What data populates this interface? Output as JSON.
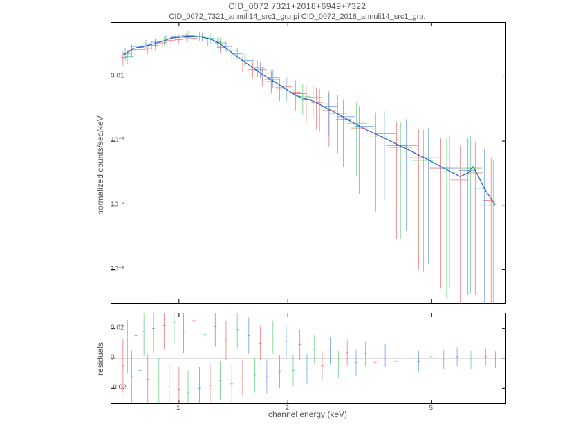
{
  "title": "CID_0072 7321+2018+6949+7322",
  "subtitle": "CID_0072_7321_annuli14_src1_grp.pi CID_0072_2018_annuli14_src1_grp.",
  "xlabel": "channel energy (keV)",
  "ylabel_top": "normalized counts/sec/keV",
  "ylabel_bot": "residuals",
  "xscale": "log",
  "yscale_top": "log",
  "yscale_bot": "linear",
  "xlim": [
    0.65,
    8.0
  ],
  "ylim_top": [
    3e-06,
    0.07
  ],
  "ylim_bot": [
    -0.03,
    0.03
  ],
  "xticks": [
    1,
    2,
    5
  ],
  "yticks_top": [
    1e-05,
    0.0001,
    0.001,
    0.01
  ],
  "yticks_top_labels": [
    "10⁻⁵",
    "10⁻⁴",
    "10⁻³",
    "0.01"
  ],
  "yticks_bot": [
    -0.02,
    0,
    0.02
  ],
  "colors": {
    "s1": "#e85050",
    "s2": "#4080e0",
    "s3": "#40c060",
    "s4": "#9060e0",
    "model": "#2060c0",
    "axis": "#000000",
    "text": "#555555"
  },
  "line_width": 0.8,
  "model_width": 1.2,
  "model_x": [
    0.7,
    0.75,
    0.8,
    0.85,
    0.9,
    0.95,
    1.0,
    1.05,
    1.1,
    1.15,
    1.2,
    1.25,
    1.3,
    1.35,
    1.4,
    1.5,
    1.6,
    1.7,
    1.8,
    1.9,
    2.0,
    2.1,
    2.2,
    2.3,
    2.4,
    2.5,
    2.7,
    3.0,
    3.3,
    3.6,
    4.0,
    4.5,
    5.0,
    5.5,
    6.0,
    6.3,
    6.5,
    6.7,
    7.0,
    7.5
  ],
  "model_y": [
    0.022,
    0.028,
    0.03,
    0.033,
    0.036,
    0.04,
    0.042,
    0.043,
    0.043,
    0.042,
    0.04,
    0.037,
    0.033,
    0.028,
    0.024,
    0.018,
    0.014,
    0.011,
    0.009,
    0.0075,
    0.0062,
    0.0052,
    0.0047,
    0.0044,
    0.004,
    0.0035,
    0.0028,
    0.002,
    0.0015,
    0.0012,
    0.0009,
    0.00065,
    0.00048,
    0.00036,
    0.00028,
    0.00032,
    0.0004,
    0.0003,
    0.00018,
    0.0001
  ],
  "series1": {
    "color": "#e85050",
    "points": [
      {
        "x": 0.7,
        "y": 0.02,
        "yl": 0.015,
        "yh": 0.025
      },
      {
        "x": 0.74,
        "y": 0.026,
        "yl": 0.02,
        "yh": 0.032
      },
      {
        "x": 0.78,
        "y": 0.029,
        "yl": 0.024,
        "yh": 0.034
      },
      {
        "x": 0.82,
        "y": 0.028,
        "yl": 0.023,
        "yh": 0.033
      },
      {
        "x": 0.86,
        "y": 0.031,
        "yl": 0.026,
        "yh": 0.036
      },
      {
        "x": 0.9,
        "y": 0.034,
        "yl": 0.029,
        "yh": 0.039
      },
      {
        "x": 0.95,
        "y": 0.037,
        "yl": 0.032,
        "yh": 0.043
      },
      {
        "x": 1.0,
        "y": 0.038,
        "yl": 0.033,
        "yh": 0.045
      },
      {
        "x": 1.05,
        "y": 0.041,
        "yl": 0.035,
        "yh": 0.048
      },
      {
        "x": 1.1,
        "y": 0.04,
        "yl": 0.034,
        "yh": 0.047
      },
      {
        "x": 1.15,
        "y": 0.039,
        "yl": 0.033,
        "yh": 0.046
      },
      {
        "x": 1.2,
        "y": 0.036,
        "yl": 0.03,
        "yh": 0.043
      },
      {
        "x": 1.25,
        "y": 0.033,
        "yl": 0.027,
        "yh": 0.039
      },
      {
        "x": 1.3,
        "y": 0.029,
        "yl": 0.024,
        "yh": 0.035
      },
      {
        "x": 1.4,
        "y": 0.022,
        "yl": 0.017,
        "yh": 0.027
      },
      {
        "x": 1.5,
        "y": 0.016,
        "yl": 0.012,
        "yh": 0.021
      },
      {
        "x": 1.6,
        "y": 0.013,
        "yl": 0.0095,
        "yh": 0.017
      },
      {
        "x": 1.7,
        "y": 0.01,
        "yl": 0.007,
        "yh": 0.014
      },
      {
        "x": 1.8,
        "y": 0.0085,
        "yl": 0.0055,
        "yh": 0.012
      },
      {
        "x": 1.9,
        "y": 0.0068,
        "yl": 0.0042,
        "yh": 0.0095
      },
      {
        "x": 2.0,
        "y": 0.007,
        "yl": 0.004,
        "yh": 0.0102
      },
      {
        "x": 2.1,
        "y": 0.0058,
        "yl": 0.003,
        "yh": 0.0088
      },
      {
        "x": 2.25,
        "y": 0.0045,
        "yl": 0.002,
        "yh": 0.0072
      },
      {
        "x": 2.4,
        "y": 0.004,
        "yl": 0.0015,
        "yh": 0.0068
      },
      {
        "x": 2.6,
        "y": 0.003,
        "yl": 0.0008,
        "yh": 0.0055
      },
      {
        "x": 2.85,
        "y": 0.0022,
        "yl": 0.0004,
        "yh": 0.0045
      },
      {
        "x": 3.15,
        "y": 0.0016,
        "yl": 0.00015,
        "yh": 0.0035
      },
      {
        "x": 3.5,
        "y": 0.0012,
        "yl": 8e-05,
        "yh": 0.0028
      },
      {
        "x": 4.0,
        "y": 0.00085,
        "yl": 3e-05,
        "yh": 0.002
      },
      {
        "x": 4.6,
        "y": 0.00055,
        "yl": 1e-05,
        "yh": 0.0015
      },
      {
        "x": 5.3,
        "y": 0.00038,
        "yl": 5e-06,
        "yh": 0.0011
      },
      {
        "x": 6.0,
        "y": 0.00025,
        "yl": 3e-06,
        "yh": 0.00085
      },
      {
        "x": 6.6,
        "y": 0.00032,
        "yl": 4e-06,
        "yh": 0.00095
      },
      {
        "x": 7.3,
        "y": 0.00012,
        "yl": 1.5e-06,
        "yh": 0.00055
      }
    ]
  },
  "series2": {
    "color": "#4080e0",
    "points": [
      {
        "x": 0.71,
        "y": 0.023,
        "yl": 0.018,
        "yh": 0.028
      },
      {
        "x": 0.76,
        "y": 0.03,
        "yl": 0.025,
        "yh": 0.035
      },
      {
        "x": 0.81,
        "y": 0.033,
        "yl": 0.028,
        "yh": 0.038
      },
      {
        "x": 0.86,
        "y": 0.035,
        "yl": 0.03,
        "yh": 0.04
      },
      {
        "x": 0.92,
        "y": 0.039,
        "yl": 0.034,
        "yh": 0.045
      },
      {
        "x": 0.98,
        "y": 0.043,
        "yl": 0.037,
        "yh": 0.05
      },
      {
        "x": 1.04,
        "y": 0.045,
        "yl": 0.039,
        "yh": 0.052
      },
      {
        "x": 1.1,
        "y": 0.045,
        "yl": 0.038,
        "yh": 0.053
      },
      {
        "x": 1.16,
        "y": 0.042,
        "yl": 0.036,
        "yh": 0.049
      },
      {
        "x": 1.22,
        "y": 0.039,
        "yl": 0.033,
        "yh": 0.046
      },
      {
        "x": 1.28,
        "y": 0.035,
        "yl": 0.029,
        "yh": 0.042
      },
      {
        "x": 1.35,
        "y": 0.03,
        "yl": 0.025,
        "yh": 0.036
      },
      {
        "x": 1.45,
        "y": 0.023,
        "yl": 0.019,
        "yh": 0.028
      },
      {
        "x": 1.55,
        "y": 0.018,
        "yl": 0.014,
        "yh": 0.023
      },
      {
        "x": 1.68,
        "y": 0.013,
        "yl": 0.0095,
        "yh": 0.017
      },
      {
        "x": 1.82,
        "y": 0.0098,
        "yl": 0.0068,
        "yh": 0.013
      },
      {
        "x": 1.98,
        "y": 0.0072,
        "yl": 0.0045,
        "yh": 0.01
      },
      {
        "x": 2.15,
        "y": 0.0055,
        "yl": 0.003,
        "yh": 0.0082
      },
      {
        "x": 2.35,
        "y": 0.0048,
        "yl": 0.0023,
        "yh": 0.0075
      },
      {
        "x": 2.6,
        "y": 0.0035,
        "yl": 0.0012,
        "yh": 0.006
      },
      {
        "x": 2.9,
        "y": 0.0024,
        "yl": 0.00055,
        "yh": 0.0048
      },
      {
        "x": 3.25,
        "y": 0.0017,
        "yl": 0.00025,
        "yh": 0.0038
      },
      {
        "x": 3.7,
        "y": 0.0013,
        "yl": 0.00012,
        "yh": 0.003
      },
      {
        "x": 4.25,
        "y": 0.00085,
        "yl": 4e-05,
        "yh": 0.0022
      },
      {
        "x": 4.9,
        "y": 0.00055,
        "yl": 1.2e-05,
        "yh": 0.0016
      },
      {
        "x": 5.6,
        "y": 0.00038,
        "yl": 5e-06,
        "yh": 0.0012
      },
      {
        "x": 6.3,
        "y": 0.00035,
        "yl": 4e-06,
        "yh": 0.0011
      },
      {
        "x": 7.0,
        "y": 0.00018,
        "yl": 1.8e-06,
        "yh": 0.00075
      }
    ]
  },
  "series3": {
    "color": "#40c060",
    "points": [
      {
        "x": 0.72,
        "y": 0.021,
        "yl": 0.016,
        "yh": 0.026
      },
      {
        "x": 0.78,
        "y": 0.027,
        "yl": 0.022,
        "yh": 0.032
      },
      {
        "x": 0.84,
        "y": 0.031,
        "yl": 0.026,
        "yh": 0.036
      },
      {
        "x": 0.91,
        "y": 0.036,
        "yl": 0.031,
        "yh": 0.042
      },
      {
        "x": 0.98,
        "y": 0.041,
        "yl": 0.035,
        "yh": 0.048
      },
      {
        "x": 1.06,
        "y": 0.044,
        "yl": 0.037,
        "yh": 0.052
      },
      {
        "x": 1.14,
        "y": 0.043,
        "yl": 0.036,
        "yh": 0.051
      },
      {
        "x": 1.22,
        "y": 0.04,
        "yl": 0.034,
        "yh": 0.048
      },
      {
        "x": 1.3,
        "y": 0.034,
        "yl": 0.028,
        "yh": 0.041
      },
      {
        "x": 1.4,
        "y": 0.026,
        "yl": 0.021,
        "yh": 0.032
      },
      {
        "x": 1.52,
        "y": 0.019,
        "yl": 0.015,
        "yh": 0.024
      },
      {
        "x": 1.65,
        "y": 0.014,
        "yl": 0.01,
        "yh": 0.018
      },
      {
        "x": 1.8,
        "y": 0.0092,
        "yl": 0.0063,
        "yh": 0.013
      },
      {
        "x": 1.98,
        "y": 0.0065,
        "yl": 0.004,
        "yh": 0.0095
      },
      {
        "x": 2.2,
        "y": 0.005,
        "yl": 0.0025,
        "yh": 0.0078
      },
      {
        "x": 2.45,
        "y": 0.0038,
        "yl": 0.0014,
        "yh": 0.0065
      },
      {
        "x": 2.75,
        "y": 0.0027,
        "yl": 0.00065,
        "yh": 0.0052
      },
      {
        "x": 3.1,
        "y": 0.0019,
        "yl": 0.00028,
        "yh": 0.004
      },
      {
        "x": 3.55,
        "y": 0.0012,
        "yl": 0.0001,
        "yh": 0.0028
      },
      {
        "x": 4.1,
        "y": 0.0008,
        "yl": 3e-05,
        "yh": 0.002
      },
      {
        "x": 4.75,
        "y": 0.0005,
        "yl": 9e-06,
        "yh": 0.0015
      },
      {
        "x": 5.5,
        "y": 0.00033,
        "yl": 3.5e-06,
        "yh": 0.0011
      },
      {
        "x": 6.4,
        "y": 0.00038,
        "yl": 4.2e-06,
        "yh": 0.0012
      },
      {
        "x": 7.4,
        "y": 0.0001,
        "yl": 1e-06,
        "yh": 0.0005
      }
    ]
  },
  "residuals": {
    "points": [
      {
        "x": 0.7,
        "r": -0.005,
        "c": "s1"
      },
      {
        "x": 0.72,
        "r": 0.008,
        "c": "s2"
      },
      {
        "x": 0.74,
        "r": -0.012,
        "c": "s3"
      },
      {
        "x": 0.76,
        "r": 0.015,
        "c": "s1"
      },
      {
        "x": 0.78,
        "r": -0.008,
        "c": "s2"
      },
      {
        "x": 0.8,
        "r": 0.018,
        "c": "s3"
      },
      {
        "x": 0.82,
        "r": -0.014,
        "c": "s1"
      },
      {
        "x": 0.85,
        "r": 0.02,
        "c": "s2"
      },
      {
        "x": 0.88,
        "r": -0.016,
        "c": "s3"
      },
      {
        "x": 0.91,
        "r": 0.022,
        "c": "s1"
      },
      {
        "x": 0.94,
        "r": -0.019,
        "c": "s2"
      },
      {
        "x": 0.97,
        "r": 0.024,
        "c": "s3"
      },
      {
        "x": 1.0,
        "r": -0.021,
        "c": "s1"
      },
      {
        "x": 1.03,
        "r": 0.018,
        "c": "s2"
      },
      {
        "x": 1.06,
        "r": -0.023,
        "c": "s3"
      },
      {
        "x": 1.1,
        "r": 0.025,
        "c": "s1"
      },
      {
        "x": 1.14,
        "r": -0.02,
        "c": "s2"
      },
      {
        "x": 1.18,
        "r": 0.016,
        "c": "s3"
      },
      {
        "x": 1.22,
        "r": -0.018,
        "c": "s1"
      },
      {
        "x": 1.26,
        "r": 0.021,
        "c": "s2"
      },
      {
        "x": 1.3,
        "r": -0.015,
        "c": "s3"
      },
      {
        "x": 1.35,
        "r": 0.012,
        "c": "s1"
      },
      {
        "x": 1.4,
        "r": -0.017,
        "c": "s2"
      },
      {
        "x": 1.45,
        "r": 0.019,
        "c": "s3"
      },
      {
        "x": 1.5,
        "r": -0.013,
        "c": "s1"
      },
      {
        "x": 1.56,
        "r": 0.015,
        "c": "s2"
      },
      {
        "x": 1.62,
        "r": -0.011,
        "c": "s3"
      },
      {
        "x": 1.68,
        "r": 0.01,
        "c": "s1"
      },
      {
        "x": 1.75,
        "r": -0.012,
        "c": "s2"
      },
      {
        "x": 1.82,
        "r": 0.014,
        "c": "s3"
      },
      {
        "x": 1.9,
        "r": -0.009,
        "c": "s1"
      },
      {
        "x": 1.98,
        "r": 0.011,
        "c": "s2"
      },
      {
        "x": 2.07,
        "r": -0.008,
        "c": "s3"
      },
      {
        "x": 2.16,
        "r": 0.009,
        "c": "s1"
      },
      {
        "x": 2.26,
        "r": -0.007,
        "c": "s2"
      },
      {
        "x": 2.37,
        "r": 0.006,
        "c": "s3"
      },
      {
        "x": 2.49,
        "r": -0.005,
        "c": "s1"
      },
      {
        "x": 2.62,
        "r": 0.005,
        "c": "s2"
      },
      {
        "x": 2.76,
        "r": -0.004,
        "c": "s3"
      },
      {
        "x": 2.92,
        "r": 0.004,
        "c": "s1"
      },
      {
        "x": 3.09,
        "r": -0.003,
        "c": "s2"
      },
      {
        "x": 3.28,
        "r": 0.003,
        "c": "s3"
      },
      {
        "x": 3.49,
        "r": -0.003,
        "c": "s1"
      },
      {
        "x": 3.72,
        "r": 0.002,
        "c": "s2"
      },
      {
        "x": 3.98,
        "r": -0.002,
        "c": "s3"
      },
      {
        "x": 4.27,
        "r": 0.002,
        "c": "s1"
      },
      {
        "x": 4.6,
        "r": -0.002,
        "c": "s2"
      },
      {
        "x": 4.98,
        "r": 0.001,
        "c": "s3"
      },
      {
        "x": 5.4,
        "r": -0.001,
        "c": "s1"
      },
      {
        "x": 5.88,
        "r": 0.001,
        "c": "s2"
      },
      {
        "x": 6.42,
        "r": -0.001,
        "c": "s3"
      },
      {
        "x": 7.05,
        "r": 0.001,
        "c": "s1"
      },
      {
        "x": 7.5,
        "r": -0.001,
        "c": "s2"
      }
    ],
    "err": 0.01
  }
}
